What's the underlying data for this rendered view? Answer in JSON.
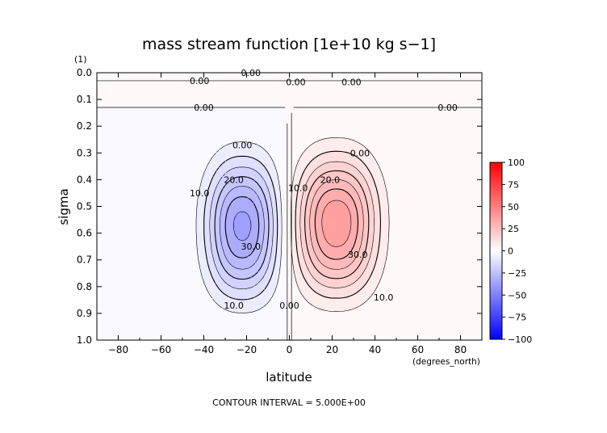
{
  "chart_data": {
    "type": "contour",
    "title": "mass stream function [1e+10 kg s−1]",
    "xlabel": "latitude",
    "ylabel": "sigma",
    "x_units": "(degrees_north)",
    "y_units": "(1)",
    "footer": "CONTOUR INTERVAL = 5.000E+00",
    "xlim": [
      -90,
      90
    ],
    "ylim": [
      1.0,
      0.0
    ],
    "y_inverted": true,
    "x_ticks": [
      -80,
      -60,
      -40,
      -20,
      0,
      20,
      40,
      60,
      80
    ],
    "x_tick_labels": [
      "−80",
      "−60",
      "−40",
      "−20",
      "0",
      "20",
      "40",
      "60",
      "80"
    ],
    "y_ticks": [
      0.0,
      0.1,
      0.2,
      0.3,
      0.4,
      0.5,
      0.6,
      0.7,
      0.8,
      0.9,
      1.0
    ],
    "y_tick_labels": [
      "0.0",
      "0.1",
      "0.2",
      "0.3",
      "0.4",
      "0.5",
      "0.6",
      "0.7",
      "0.8",
      "0.9",
      "1.0"
    ],
    "contour_interval": 5.0,
    "colorbar": {
      "min": -100,
      "max": 100,
      "step": 25,
      "labels": [
        "100",
        "75",
        "50",
        "25",
        "0",
        "−25",
        "−50",
        "−75",
        "−100"
      ],
      "negative_color": "#0000ff",
      "positive_color": "#ff0000",
      "zero_color": "#ffffff"
    },
    "cells": {
      "southern_cell": {
        "center_lat": -22,
        "center_sigma": 0.62,
        "peak": -38,
        "lat_halfwidth": 16,
        "sigma_halfdepth": 0.3
      },
      "northern_cell": {
        "center_lat": 22,
        "center_sigma": 0.6,
        "peak": 40,
        "lat_halfwidth": 18,
        "sigma_halfdepth": 0.3
      }
    },
    "contour_labels": [
      {
        "text": "0.00",
        "lat": -42,
        "sigma": 0.03
      },
      {
        "text": "0.00",
        "lat": -18,
        "sigma": 0.0
      },
      {
        "text": "0.00",
        "lat": 3,
        "sigma": 0.035
      },
      {
        "text": "0.00",
        "lat": 29,
        "sigma": 0.035
      },
      {
        "text": "0.00",
        "lat": -40,
        "sigma": 0.13
      },
      {
        "text": "0.00",
        "lat": 74,
        "sigma": 0.13
      },
      {
        "text": "0.00",
        "lat": -22,
        "sigma": 0.27
      },
      {
        "text": "0.00",
        "lat": 33,
        "sigma": 0.3
      },
      {
        "text": "0.00",
        "lat": 0,
        "sigma": 0.87
      },
      {
        "text": "10.0",
        "lat": -42,
        "sigma": 0.45
      },
      {
        "text": "20.0",
        "lat": -26,
        "sigma": 0.4
      },
      {
        "text": "30.0",
        "lat": -18,
        "sigma": 0.65
      },
      {
        "text": "10.0",
        "lat": -26,
        "sigma": 0.87
      },
      {
        "text": "10.0",
        "lat": 4,
        "sigma": 0.43
      },
      {
        "text": "20.0",
        "lat": 19,
        "sigma": 0.4
      },
      {
        "text": "30.0",
        "lat": 32,
        "sigma": 0.68
      },
      {
        "text": "10.0",
        "lat": 44,
        "sigma": 0.84
      }
    ]
  }
}
